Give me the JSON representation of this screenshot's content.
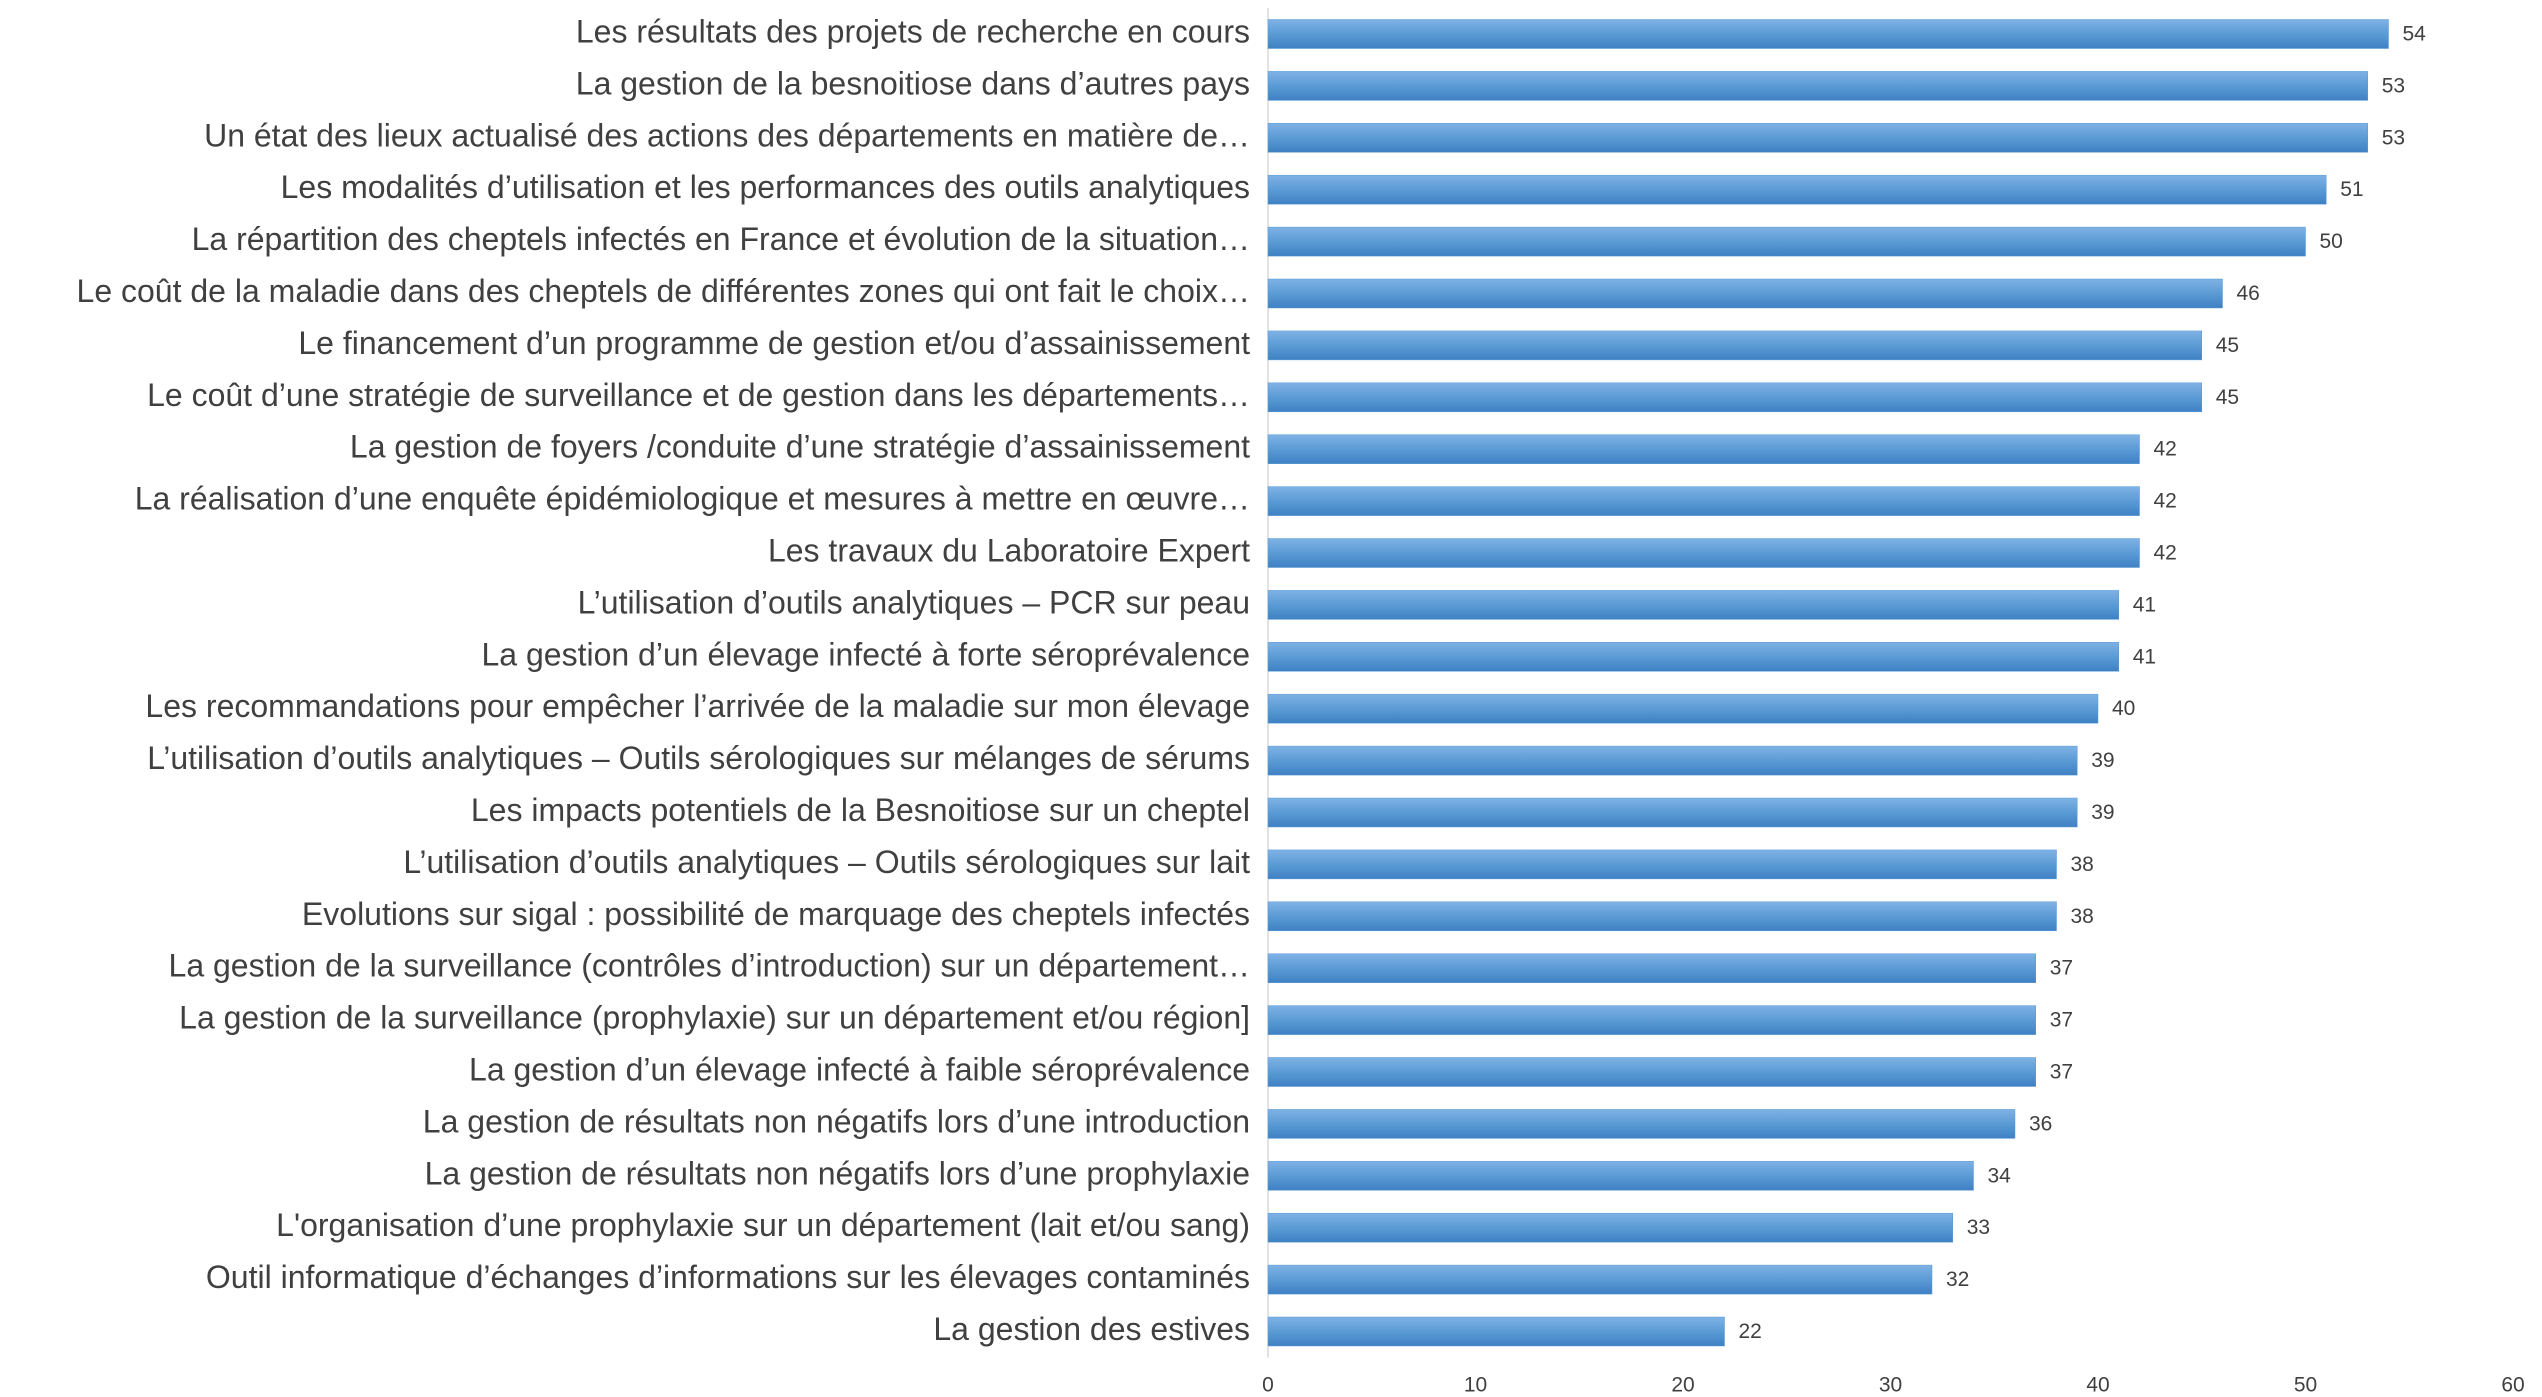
{
  "chart_data": {
    "type": "bar",
    "orientation": "horizontal",
    "categories": [
      "Les résultats des projets de recherche en cours",
      "La gestion de la besnoitiose dans d’autres pays",
      "Un état des lieux actualisé des actions des départements en matière de…",
      "Les modalités d’utilisation et les performances des outils analytiques",
      "La répartition des cheptels infectés en France et évolution de la situation…",
      "Le coût de la maladie dans des cheptels de différentes zones qui ont fait le choix…",
      "Le financement d’un programme de gestion et/ou d’assainissement",
      "Le coût d’une stratégie de surveillance et de gestion dans les départements…",
      "La gestion de foyers /conduite d’une stratégie d’assainissement",
      "La réalisation d’une enquête épidémiologique et mesures à mettre en œuvre…",
      "Les travaux du Laboratoire Expert",
      "L’utilisation d’outils analytiques – PCR sur peau",
      "La gestion d’un élevage infecté à forte séroprévalence",
      "Les recommandations pour empêcher l’arrivée de la maladie sur mon élevage",
      "L’utilisation d’outils analytiques – Outils sérologiques sur mélanges de sérums",
      "Les impacts potentiels de la Besnoitiose sur un cheptel",
      "L’utilisation d’outils analytiques – Outils sérologiques sur lait",
      "Evolutions sur sigal : possibilité de marquage des cheptels infectés",
      "La gestion de la surveillance (contrôles d’introduction) sur un département…",
      "La gestion de la surveillance (prophylaxie) sur un département et/ou région]",
      "La gestion d’un élevage infecté à faible séroprévalence",
      "La gestion de résultats non négatifs lors d’une introduction",
      "La gestion de résultats non négatifs lors d’une prophylaxie",
      "L'organisation d’une prophylaxie sur un département (lait et/ou sang)",
      "Outil informatique d’échanges d’informations sur les élevages contaminés",
      "La gestion des estives"
    ],
    "values": [
      54,
      53,
      53,
      51,
      50,
      46,
      45,
      45,
      42,
      42,
      42,
      41,
      41,
      40,
      39,
      39,
      38,
      38,
      37,
      37,
      37,
      36,
      34,
      33,
      32,
      22
    ],
    "color": "#5b9bd5",
    "xlim": [
      0,
      60
    ],
    "xticks": [
      0,
      10,
      20,
      30,
      40,
      50,
      60
    ],
    "grid": false
  }
}
